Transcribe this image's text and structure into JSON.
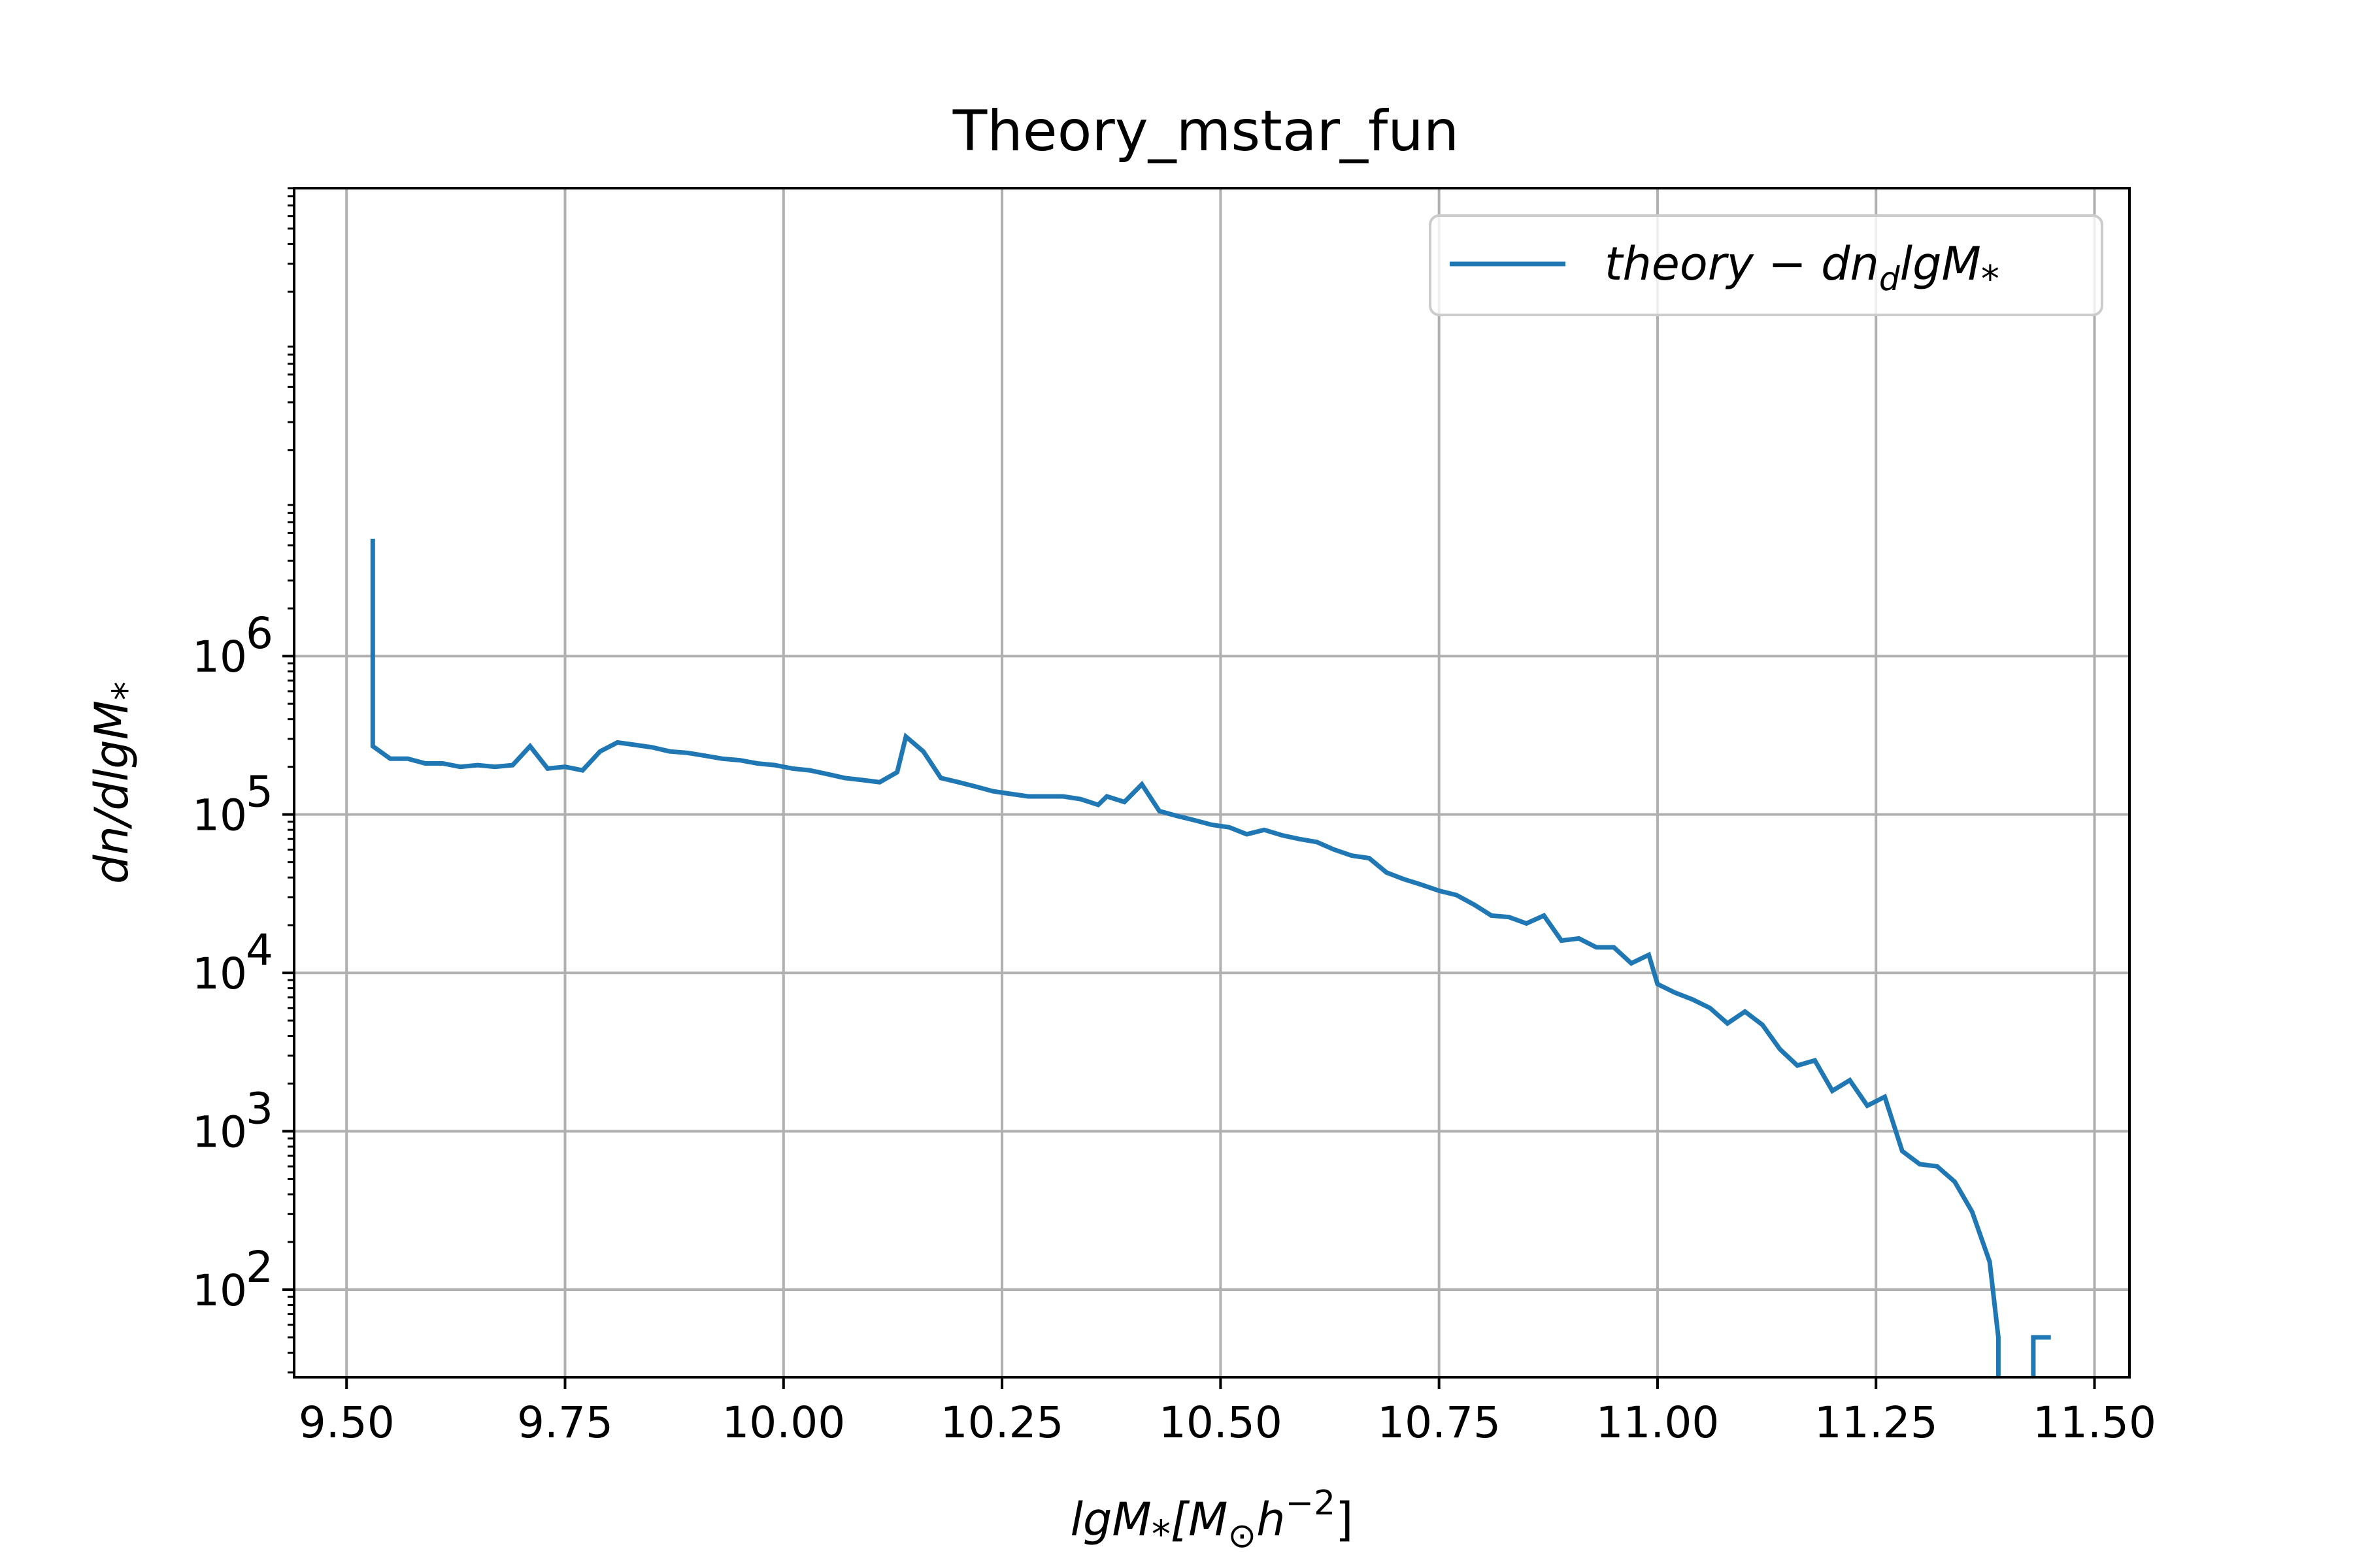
{
  "chart_data": {
    "type": "line",
    "title": "Theory_mstar_fun",
    "xlabel": "lgM_*[M_⊙h^-2]",
    "ylabel": "dn/dlgM_*",
    "yscale": "log",
    "xlim": [
      9.44,
      11.54
    ],
    "ylim": [
      28,
      900000000
    ],
    "xticks": [
      9.5,
      9.75,
      10.0,
      10.25,
      10.5,
      10.75,
      11.0,
      11.25,
      11.5
    ],
    "xtick_labels": [
      "9.50",
      "9.75",
      "10.00",
      "10.25",
      "10.50",
      "10.75",
      "11.00",
      "11.25",
      "11.50"
    ],
    "yticks": [
      100,
      1000,
      10000,
      100000,
      1000000
    ],
    "ytick_labels": [
      "10",
      "10",
      "10",
      "10",
      "10"
    ],
    "ytick_exponents": [
      "2",
      "3",
      "4",
      "5",
      "6"
    ],
    "grid": true,
    "legend_position": "top-right",
    "series": [
      {
        "name": "theory-dn_dlgM_*",
        "color": "#1f77b4",
        "x": [
          9.53,
          9.53,
          9.55,
          9.57,
          9.59,
          9.61,
          9.63,
          9.65,
          9.67,
          9.69,
          9.71,
          9.73,
          9.75,
          9.77,
          9.79,
          9.81,
          9.83,
          9.85,
          9.87,
          9.89,
          9.91,
          9.93,
          9.95,
          9.97,
          9.99,
          10.01,
          10.03,
          10.05,
          10.07,
          10.09,
          10.11,
          10.13,
          10.14,
          10.16,
          10.18,
          10.2,
          10.22,
          10.24,
          10.26,
          10.28,
          10.3,
          10.32,
          10.34,
          10.36,
          10.37,
          10.39,
          10.41,
          10.43,
          10.45,
          10.47,
          10.49,
          10.51,
          10.53,
          10.55,
          10.57,
          10.59,
          10.61,
          10.63,
          10.65,
          10.67,
          10.69,
          10.71,
          10.73,
          10.75,
          10.77,
          10.79,
          10.81,
          10.83,
          10.85,
          10.87,
          10.89,
          10.91,
          10.93,
          10.95,
          10.97,
          10.99,
          11.0,
          11.02,
          11.04,
          11.06,
          11.08,
          11.1,
          11.12,
          11.14,
          11.16,
          11.18,
          11.2,
          11.22,
          11.24,
          11.26,
          11.28,
          11.3,
          11.32,
          11.34,
          11.36,
          11.38,
          11.39,
          11.39,
          null,
          11.43,
          11.43,
          11.45
        ],
        "y": [
          5500000,
          270000,
          225000,
          225000,
          210000,
          210000,
          200000,
          205000,
          200000,
          205000,
          270000,
          195000,
          200000,
          190000,
          250000,
          285000,
          275000,
          265000,
          250000,
          245000,
          235000,
          225000,
          220000,
          210000,
          205000,
          195000,
          190000,
          180000,
          170000,
          165000,
          160000,
          185000,
          310000,
          250000,
          170000,
          160000,
          150000,
          140000,
          135000,
          130000,
          130000,
          130000,
          125000,
          115000,
          130000,
          120000,
          155000,
          105000,
          98000,
          92000,
          86000,
          83000,
          75000,
          80000,
          74000,
          70000,
          67000,
          60000,
          55000,
          53000,
          43000,
          39000,
          36000,
          33000,
          31000,
          27000,
          23000,
          22500,
          20500,
          23000,
          16000,
          16500,
          14500,
          14500,
          11500,
          13000,
          8500,
          7500,
          6800,
          6000,
          4800,
          5700,
          4700,
          3300,
          2600,
          2800,
          1800,
          2100,
          1450,
          1650,
          750,
          620,
          600,
          480,
          310,
          150,
          50,
          28,
          null,
          28,
          50,
          50
        ]
      }
    ]
  }
}
